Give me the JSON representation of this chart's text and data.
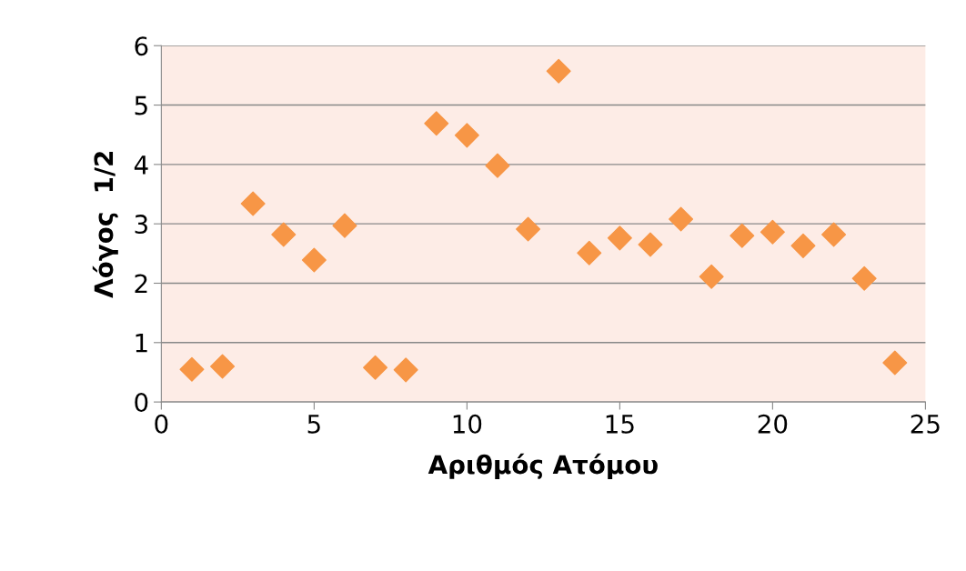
{
  "chart_data": {
    "type": "scatter",
    "xlabel": "Αριθμός Ατόμου",
    "ylabel": "Λόγος  1/2",
    "x": [
      1,
      2,
      3,
      4,
      5,
      6,
      7,
      8,
      9,
      10,
      11,
      12,
      13,
      14,
      15,
      16,
      17,
      18,
      19,
      20,
      21,
      22,
      23,
      24
    ],
    "series": [
      {
        "color": "#f79646",
        "values": [
          0.55,
          0.6,
          3.34,
          2.82,
          2.39,
          2.97,
          0.58,
          0.54,
          4.69,
          4.49,
          3.98,
          2.91,
          5.57,
          2.51,
          2.76,
          2.65,
          3.08,
          2.11,
          2.8,
          2.86,
          2.63,
          2.82,
          2.08,
          0.66
        ]
      }
    ],
    "xlim": [
      0,
      25
    ],
    "xticks": [
      0,
      5,
      10,
      15,
      20,
      25
    ],
    "ylim": [
      0,
      6
    ],
    "yticks": [
      0,
      1,
      2,
      3,
      4,
      5,
      6
    ],
    "grid": "y",
    "marker": "diamond",
    "legend": false
  }
}
